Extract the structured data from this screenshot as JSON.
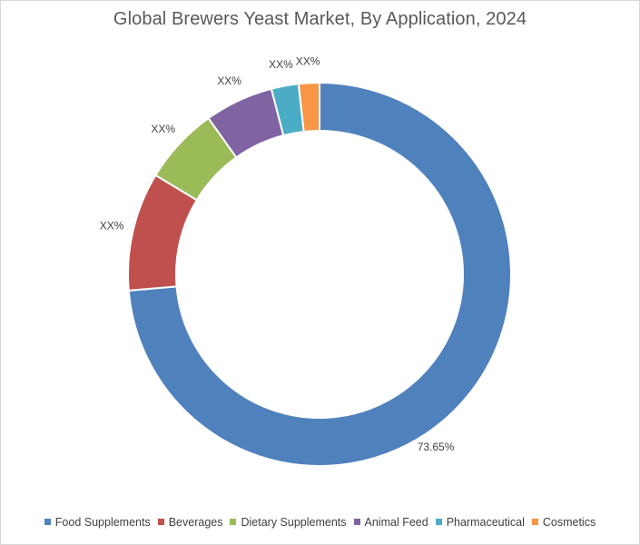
{
  "chart_data": {
    "type": "pie",
    "variant": "donut",
    "title": "Global Brewers Yeast Market, By Application, 2024",
    "categories": [
      "Food Supplements",
      "Beverages",
      "Dietary Supplements",
      "Animal Feed",
      "Pharmaceutical",
      "Cosmetics"
    ],
    "values": [
      73.65,
      10.0,
      6.5,
      5.8,
      2.3,
      1.75
    ],
    "labels": [
      "73.65%",
      "XX%",
      "XX%",
      "XX%",
      "XX%",
      "XX%"
    ],
    "colors": [
      "#4F81BD",
      "#C0504D",
      "#9BBB59",
      "#8064A2",
      "#4BACC6",
      "#F79646"
    ],
    "legend_position": "bottom",
    "start_angle_deg": 0,
    "direction": "clockwise"
  }
}
